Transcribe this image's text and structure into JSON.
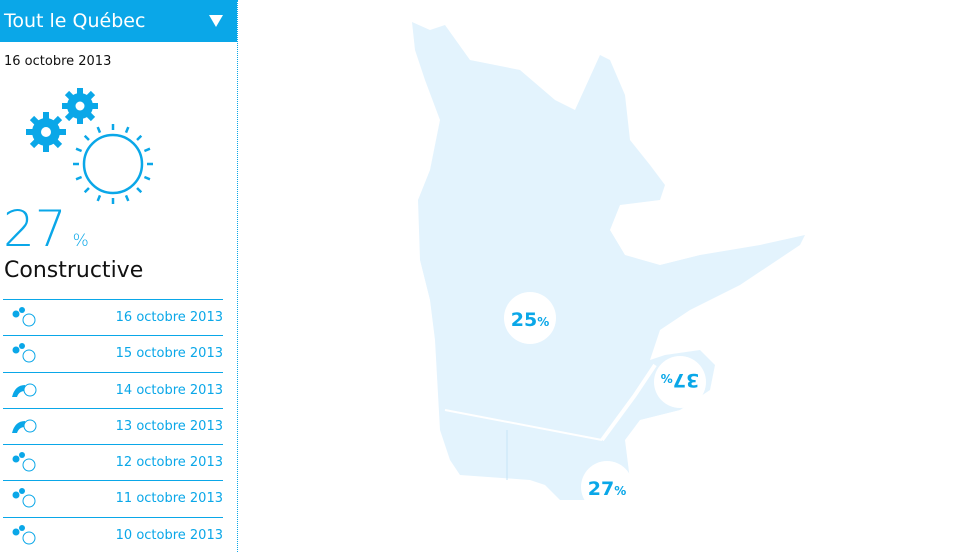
{
  "header": {
    "title": "Tout le Québec"
  },
  "summary": {
    "date": "16 octobre 2013",
    "value": "27",
    "unit": "%",
    "label": "Constructive"
  },
  "history": [
    {
      "icon": "gears",
      "date": "16 octobre 2013"
    },
    {
      "icon": "gears",
      "date": "15 octobre 2013"
    },
    {
      "icon": "arc",
      "date": "14 octobre 2013"
    },
    {
      "icon": "arc",
      "date": "13 octobre 2013"
    },
    {
      "icon": "gears",
      "date": "12 octobre 2013"
    },
    {
      "icon": "gears",
      "date": "11 octobre 2013"
    },
    {
      "icon": "gears",
      "date": "10 octobre 2013"
    }
  ],
  "regions": [
    {
      "value": "25",
      "unit": "%"
    },
    {
      "value": "37",
      "unit": "%"
    },
    {
      "value": "27",
      "unit": "%"
    }
  ]
}
